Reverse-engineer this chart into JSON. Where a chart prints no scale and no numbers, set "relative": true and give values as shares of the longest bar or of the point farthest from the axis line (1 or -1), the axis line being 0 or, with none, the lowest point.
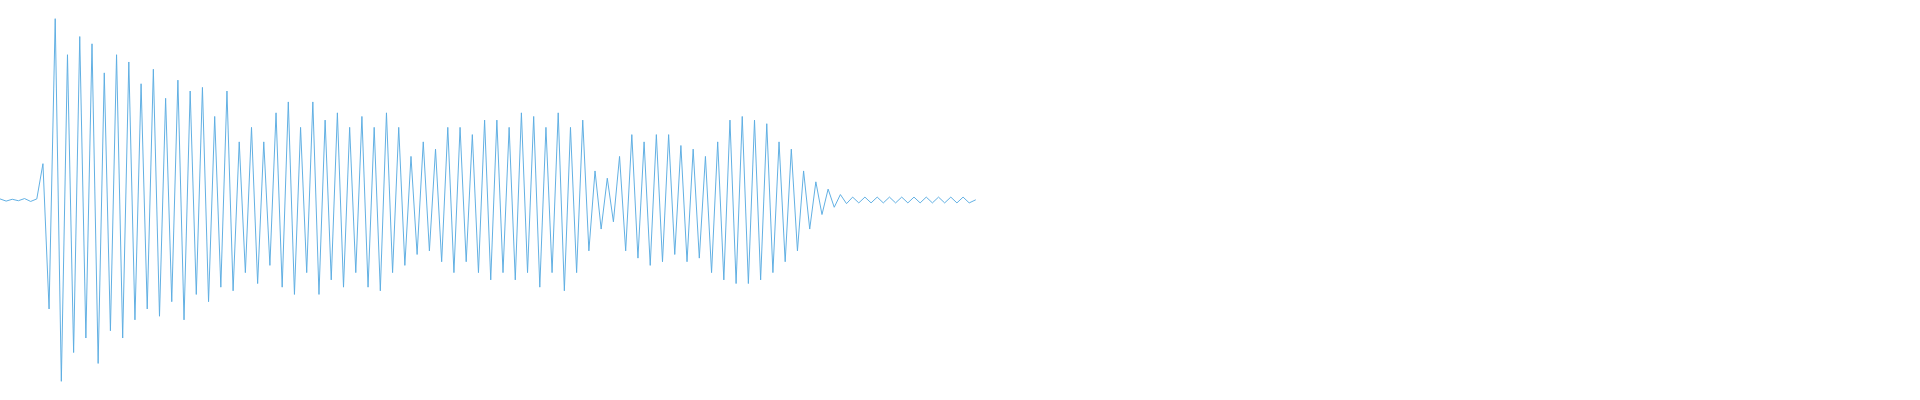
{
  "chart_data": {
    "type": "line",
    "relative": true,
    "categories": [
      null,
      null,
      null,
      null,
      null,
      null,
      null,
      null,
      null,
      null,
      null,
      null,
      null,
      null,
      null,
      null,
      null,
      null,
      null,
      null,
      null,
      null,
      null,
      null,
      null,
      null,
      null,
      null,
      null,
      null,
      null,
      null,
      null,
      null,
      null,
      null,
      null,
      null,
      null,
      null,
      null,
      null,
      null,
      null,
      null,
      null,
      null,
      null,
      null,
      null,
      null,
      null,
      null,
      null,
      null,
      null,
      null,
      null,
      null,
      null,
      null,
      null,
      null,
      null,
      null,
      null,
      null,
      null,
      null,
      null,
      null,
      null,
      null,
      null,
      null,
      null,
      null,
      null,
      null,
      null,
      null,
      null,
      null,
      null,
      null,
      null,
      null,
      null,
      null,
      null,
      null,
      null,
      null,
      null,
      null,
      null,
      null,
      null,
      null,
      null,
      null,
      null,
      null,
      null,
      null,
      null,
      null,
      null,
      null,
      null,
      null,
      null,
      null,
      null,
      null,
      null,
      null,
      null,
      null,
      null,
      null,
      null,
      null,
      null,
      null,
      null,
      null,
      null,
      null,
      null,
      null,
      null,
      null,
      null,
      null,
      null,
      null,
      null,
      null,
      null,
      null,
      null,
      null,
      null,
      null,
      null,
      null,
      null,
      null,
      null,
      null,
      null,
      null,
      null,
      null,
      null,
      null,
      null,
      null,
      null,
      null,
      null,
      null,
      null,
      null,
      null,
      null,
      null,
      null,
      null,
      null,
      null,
      null,
      null,
      null,
      null,
      null,
      null,
      null,
      null,
      null,
      null,
      null,
      null,
      null,
      null,
      null,
      null,
      null,
      null,
      null,
      null,
      null,
      null,
      null,
      null,
      null,
      null,
      null,
      null,
      null,
      null,
      null,
      null,
      null,
      null,
      null,
      null,
      null,
      null,
      null,
      null,
      null,
      null,
      null,
      null,
      null,
      null,
      null,
      null,
      null,
      null,
      null,
      null,
      null,
      null,
      null,
      null,
      null,
      null,
      null,
      null,
      null,
      null,
      null,
      null,
      null,
      null,
      null,
      null,
      null,
      null,
      null,
      null,
      null,
      null,
      null,
      null,
      null,
      null,
      null,
      null,
      null,
      null,
      null,
      null,
      null,
      null,
      null,
      null,
      null,
      null,
      null,
      null,
      null,
      null,
      null,
      null,
      null,
      null,
      null,
      null,
      null,
      null,
      null,
      null,
      null,
      null,
      null,
      null,
      null,
      null,
      null,
      null,
      null,
      null,
      null,
      null,
      null,
      null,
      null,
      null,
      null,
      null,
      null,
      null,
      null,
      null,
      null,
      null,
      null,
      null,
      null,
      null,
      null,
      null,
      null,
      null,
      null,
      null,
      null,
      null,
      null,
      null
    ],
    "series": [
      {
        "color": "#5dade2",
        "values": [
          0.503,
          0.497,
          0.502,
          0.498,
          0.504,
          0.496,
          0.503,
          0.6,
          0.2,
          1.0,
          0.0,
          0.9,
          0.08,
          0.95,
          0.12,
          0.93,
          0.05,
          0.85,
          0.14,
          0.9,
          0.12,
          0.88,
          0.17,
          0.82,
          0.2,
          0.86,
          0.18,
          0.78,
          0.22,
          0.83,
          0.17,
          0.8,
          0.24,
          0.81,
          0.22,
          0.73,
          0.26,
          0.8,
          0.25,
          0.66,
          0.3,
          0.7,
          0.27,
          0.66,
          0.32,
          0.74,
          0.26,
          0.77,
          0.24,
          0.7,
          0.3,
          0.77,
          0.24,
          0.72,
          0.28,
          0.74,
          0.26,
          0.7,
          0.3,
          0.73,
          0.26,
          0.7,
          0.25,
          0.74,
          0.3,
          0.7,
          0.32,
          0.62,
          0.35,
          0.66,
          0.36,
          0.64,
          0.33,
          0.7,
          0.3,
          0.7,
          0.33,
          0.68,
          0.3,
          0.72,
          0.28,
          0.72,
          0.3,
          0.7,
          0.28,
          0.74,
          0.3,
          0.73,
          0.26,
          0.7,
          0.3,
          0.74,
          0.25,
          0.7,
          0.3,
          0.72,
          0.36,
          0.58,
          0.42,
          0.56,
          0.44,
          0.62,
          0.36,
          0.68,
          0.34,
          0.66,
          0.32,
          0.68,
          0.33,
          0.68,
          0.35,
          0.65,
          0.33,
          0.64,
          0.34,
          0.62,
          0.3,
          0.66,
          0.28,
          0.72,
          0.27,
          0.73,
          0.27,
          0.72,
          0.28,
          0.71,
          0.3,
          0.66,
          0.33,
          0.64,
          0.36,
          0.58,
          0.42,
          0.55,
          0.46,
          0.53,
          0.48,
          0.515,
          0.49,
          0.508,
          0.492,
          0.508,
          0.492,
          0.508,
          0.492,
          0.508,
          0.492,
          0.508,
          0.492,
          0.508,
          0.492,
          0.508,
          0.492,
          0.508,
          0.492,
          0.508,
          0.492,
          0.508,
          0.492,
          0.5,
          null,
          null,
          null,
          null,
          null,
          null,
          null,
          null,
          null,
          null,
          null,
          null,
          null,
          null,
          null,
          null,
          null,
          null,
          null,
          null,
          null,
          null,
          null,
          null,
          null,
          null,
          null,
          null,
          null,
          null,
          null,
          null,
          null,
          null,
          null,
          null,
          null,
          null,
          null,
          null,
          null,
          null,
          null,
          null,
          null,
          null,
          null,
          null,
          null,
          null,
          null,
          null,
          null,
          null,
          null,
          null,
          null,
          null,
          null,
          null,
          null,
          null,
          null,
          null,
          null,
          null,
          null,
          null,
          null,
          null,
          null,
          null,
          null,
          null,
          null,
          null,
          null,
          null,
          null,
          null,
          null,
          null,
          null,
          null,
          null,
          null,
          null,
          null,
          null,
          null,
          null,
          null,
          null,
          null,
          null,
          null,
          null,
          null,
          null,
          null,
          null,
          null,
          null,
          null,
          null,
          null,
          null,
          null,
          null,
          null,
          null,
          null,
          null,
          null,
          null,
          null,
          null,
          null,
          null,
          null,
          null,
          null,
          null,
          null,
          null,
          null,
          null,
          null,
          null,
          null,
          null,
          null,
          null,
          null,
          null,
          null,
          null,
          null,
          null,
          null,
          null,
          null,
          null,
          null,
          null,
          null,
          null,
          null,
          null,
          null,
          null,
          null,
          null,
          null
        ]
      }
    ]
  }
}
